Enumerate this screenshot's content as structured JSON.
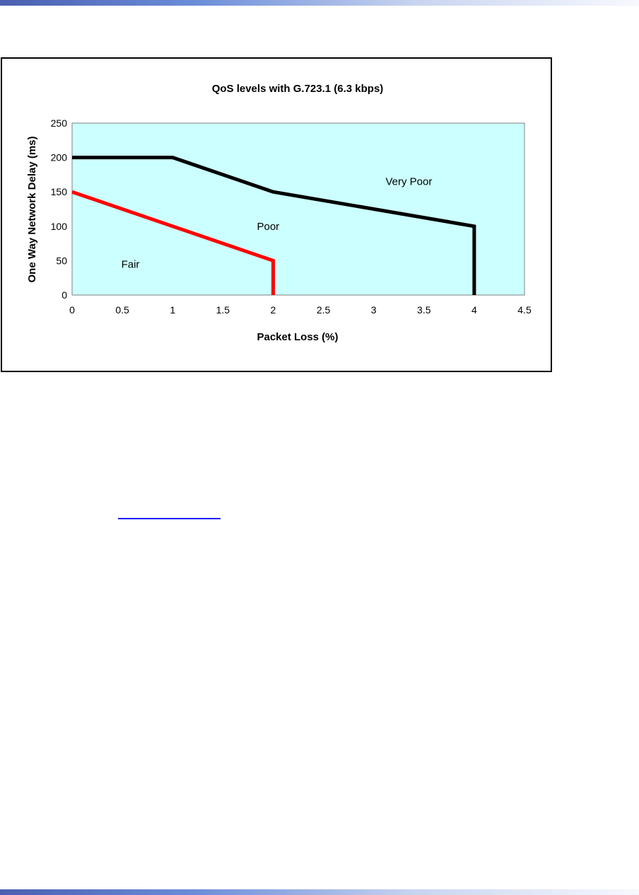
{
  "page": {
    "bar_gradient": [
      "#4a5fb0",
      "#6a8cd8",
      "#c8d4f0",
      "#f8f9fe"
    ]
  },
  "chart_data": {
    "type": "line",
    "title": "QoS levels with G.723.1 (6.3 kbps)",
    "xlabel": "Packet Loss (%)",
    "ylabel": "One Way Network Delay (ms)",
    "xlim": [
      0,
      4.5
    ],
    "ylim": [
      0,
      250
    ],
    "xticks": [
      "0",
      "0.5",
      "1",
      "1.5",
      "2",
      "2.5",
      "3",
      "3.5",
      "4",
      "4.5"
    ],
    "yticks": [
      "0",
      "50",
      "100",
      "150",
      "200",
      "250"
    ],
    "grid": false,
    "plot_background": "#ccffff",
    "series": [
      {
        "color": "#000000",
        "points": [
          [
            0,
            200
          ],
          [
            1,
            200
          ],
          [
            2,
            150
          ],
          [
            4,
            100
          ],
          [
            4,
            0
          ]
        ]
      },
      {
        "color": "#ff0000",
        "points": [
          [
            0,
            150
          ],
          [
            2,
            50
          ],
          [
            2,
            0
          ]
        ]
      }
    ],
    "annotations": [
      {
        "text": "Very Poor",
        "x": 3.35,
        "y": 165
      },
      {
        "text": "Poor",
        "x": 1.95,
        "y": 100
      },
      {
        "text": "Fair",
        "x": 0.58,
        "y": 45
      }
    ]
  }
}
